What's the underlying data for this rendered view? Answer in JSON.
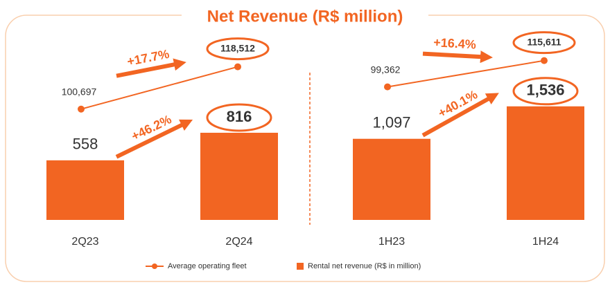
{
  "title": "Net Revenue (R$ million)",
  "chart_data": [
    {
      "type": "bar",
      "categories": [
        "2Q23",
        "2Q24"
      ],
      "ylim": [
        0,
        1800
      ],
      "y2lim": [
        54000,
        135000
      ],
      "annotations": [
        "+17.7%",
        "+46.2%"
      ],
      "series": [
        {
          "name": "Rental net revenue (R$ in million)",
          "color": "#f26522",
          "values": [
            558,
            816
          ]
        },
        {
          "name": "Average operating fleet",
          "color": "#f26522",
          "axis": "y2",
          "values": [
            100697,
            118512
          ],
          "value_labels": [
            "100,697",
            "118,512"
          ]
        }
      ]
    },
    {
      "type": "bar",
      "categories": [
        "1H23",
        "1H24"
      ],
      "ylim": [
        0,
        2600
      ],
      "y2lim": [
        17000,
        136000
      ],
      "annotations": [
        "+16.4%",
        "+40.1%"
      ],
      "series": [
        {
          "color": "#f26522",
          "values": [
            1097,
            1536
          ],
          "value_labels": [
            "1,097",
            "1,536"
          ]
        },
        {
          "color": "#f26522",
          "axis": "y2",
          "values": [
            99362,
            115611
          ],
          "value_labels": [
            "99,362",
            "115,611"
          ]
        }
      ]
    }
  ]
}
